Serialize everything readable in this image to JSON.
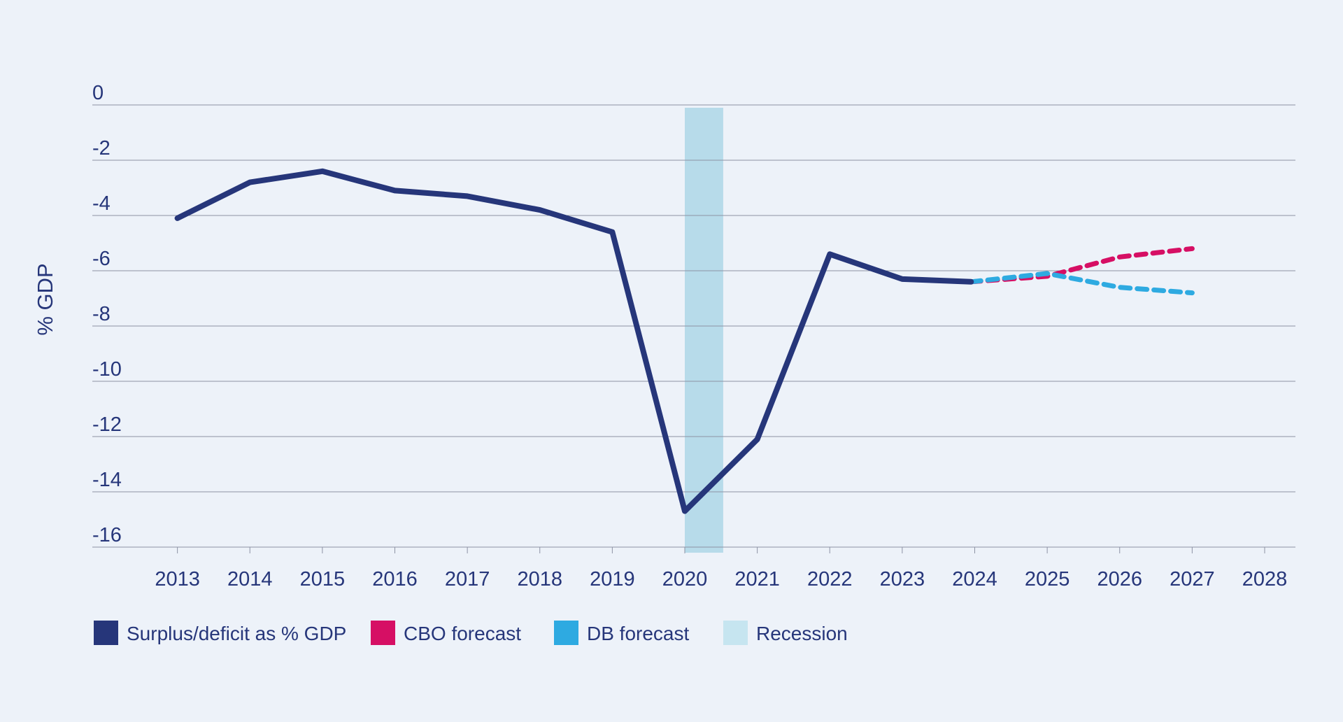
{
  "chart_data": {
    "type": "line",
    "title": "",
    "xlabel": "",
    "ylabel": "% GDP",
    "ylim": [
      -16,
      0
    ],
    "yticks": [
      0,
      -2,
      -4,
      -6,
      -8,
      -10,
      -12,
      -14,
      -16
    ],
    "xlim": [
      2012.0,
      2028.0
    ],
    "xticks": [
      2013,
      2014,
      2015,
      2016,
      2017,
      2018,
      2019,
      2020,
      2021,
      2022,
      2023,
      2024,
      2025,
      2026,
      2027,
      2028
    ],
    "grid": "horizontal",
    "legend_position": "bottom-left",
    "recession": {
      "name": "Recession",
      "start": 2020.0,
      "end": 2020.53,
      "color": "#b7dbea"
    },
    "series": [
      {
        "name": "Surplus/deficit as % GDP",
        "color": "#26367a",
        "style": "solid",
        "x": [
          2013,
          2014,
          2015,
          2016,
          2017,
          2018,
          2019,
          2020,
          2021,
          2022,
          2023,
          2023.95
        ],
        "values": [
          -4.1,
          -2.8,
          -2.4,
          -3.1,
          -3.3,
          -3.8,
          -4.6,
          -14.7,
          -12.1,
          -5.4,
          -6.3,
          -6.4
        ]
      },
      {
        "name": "CBO forecast",
        "color": "#d60f64",
        "style": "dashed",
        "x": [
          2023.95,
          2025,
          2026,
          2027
        ],
        "values": [
          -6.4,
          -6.2,
          -5.5,
          -5.2
        ]
      },
      {
        "name": "DB forecast",
        "color": "#2eaae1",
        "style": "dashed",
        "x": [
          2023.95,
          2025,
          2026,
          2027
        ],
        "values": [
          -6.4,
          -6.1,
          -6.6,
          -6.8
        ]
      }
    ],
    "legend": [
      {
        "label": "Surplus/deficit as % GDP",
        "color": "#26367a"
      },
      {
        "label": "CBO forecast",
        "color": "#d60f64"
      },
      {
        "label": "DB forecast",
        "color": "#2eaae1"
      },
      {
        "label": "Recession",
        "color": "#c6e5f0"
      }
    ]
  }
}
